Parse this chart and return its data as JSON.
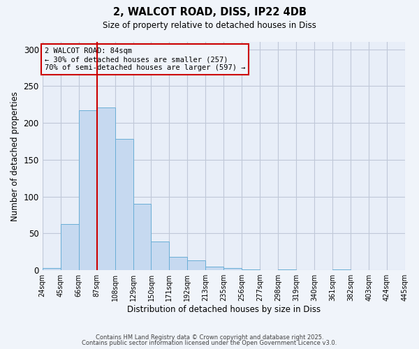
{
  "title1": "2, WALCOT ROAD, DISS, IP22 4DB",
  "title2": "Size of property relative to detached houses in Diss",
  "xlabel": "Distribution of detached houses by size in Diss",
  "ylabel": "Number of detached properties",
  "bar_values": [
    3,
    63,
    217,
    221,
    178,
    90,
    39,
    18,
    13,
    5,
    3,
    1,
    0,
    1,
    0,
    0,
    1
  ],
  "tick_labels": [
    "24sqm",
    "45sqm",
    "66sqm",
    "87sqm",
    "108sqm",
    "129sqm",
    "150sqm",
    "171sqm",
    "192sqm",
    "213sqm",
    "235sqm",
    "256sqm",
    "277sqm",
    "298sqm",
    "319sqm",
    "340sqm",
    "361sqm",
    "382sqm",
    "403sqm",
    "424sqm",
    "445sqm"
  ],
  "bar_color": "#c6d9f0",
  "bar_edge_color": "#6aaed6",
  "vline_color": "#cc0000",
  "annotation_title": "2 WALCOT ROAD: 84sqm",
  "annotation_line1": "← 30% of detached houses are smaller (257)",
  "annotation_line2": "70% of semi-detached houses are larger (597) →",
  "annotation_box_color": "#cc0000",
  "ylim": [
    0,
    310
  ],
  "yticks": [
    0,
    50,
    100,
    150,
    200,
    250,
    300
  ],
  "footer1": "Contains HM Land Registry data © Crown copyright and database right 2025.",
  "footer2": "Contains public sector information licensed under the Open Government Licence v3.0.",
  "bg_color": "#f0f4fa",
  "plot_bg_color": "#e8eef8",
  "grid_color": "#c0c8d8"
}
